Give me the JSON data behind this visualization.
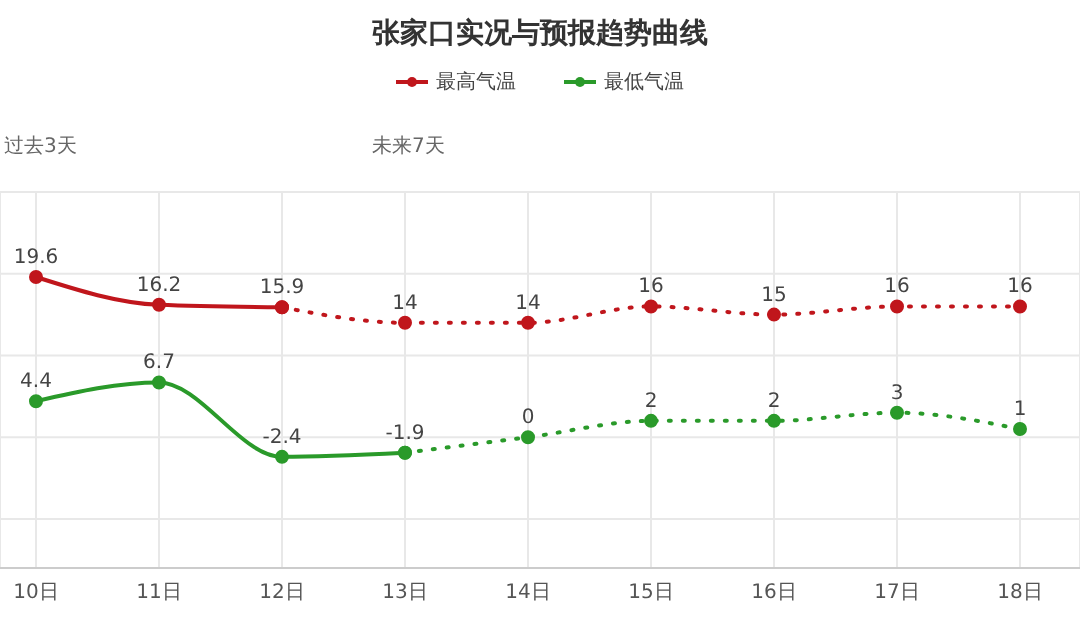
{
  "chart_data": {
    "type": "line",
    "title": "张家口实况与预报趋势曲线",
    "categories": [
      "10日",
      "11日",
      "12日",
      "13日",
      "14日",
      "15日",
      "16日",
      "17日",
      "18日"
    ],
    "series": [
      {
        "name": "最高气温",
        "color": "#c0161c",
        "line_style": "solid",
        "values": [
          19.6,
          16.2,
          15.9,
          null,
          null,
          null,
          null,
          null,
          null
        ],
        "value_labels": [
          "19.6",
          "16.2",
          "15.9",
          null,
          null,
          null,
          null,
          null,
          null
        ]
      },
      {
        "color": "#c0161c",
        "line_style": "dotted",
        "values": [
          null,
          null,
          15.9,
          14,
          14,
          16,
          15,
          16,
          16
        ],
        "value_labels": [
          null,
          null,
          null,
          "14",
          "14",
          "16",
          "15",
          "16",
          "16"
        ]
      },
      {
        "name": "最低气温",
        "color": "#2a9a2a",
        "line_style": "solid",
        "values": [
          4.4,
          6.7,
          -2.4,
          -1.9,
          null,
          null,
          null,
          null,
          null
        ],
        "value_labels": [
          "4.4",
          "6.7",
          "-2.4",
          "-1.9",
          null,
          null,
          null,
          null,
          null
        ]
      },
      {
        "color": "#2a9a2a",
        "line_style": "dotted",
        "values": [
          null,
          null,
          null,
          -1.9,
          0,
          2,
          2,
          3,
          1
        ],
        "value_labels": [
          null,
          null,
          null,
          null,
          "0",
          "2",
          "2",
          "3",
          "1"
        ]
      }
    ],
    "annotations": [
      "过去3天",
      "未来7天"
    ],
    "ylim": [
      -16,
      30
    ],
    "yticks": [
      {
        "value": -10,
        "label": null
      },
      {
        "value": 0,
        "label": null
      },
      {
        "value": 10,
        "label": null
      },
      {
        "value": 20,
        "label": null
      }
    ],
    "tick_labels": "x",
    "grid": true,
    "legend": "top",
    "marker": "circle"
  }
}
